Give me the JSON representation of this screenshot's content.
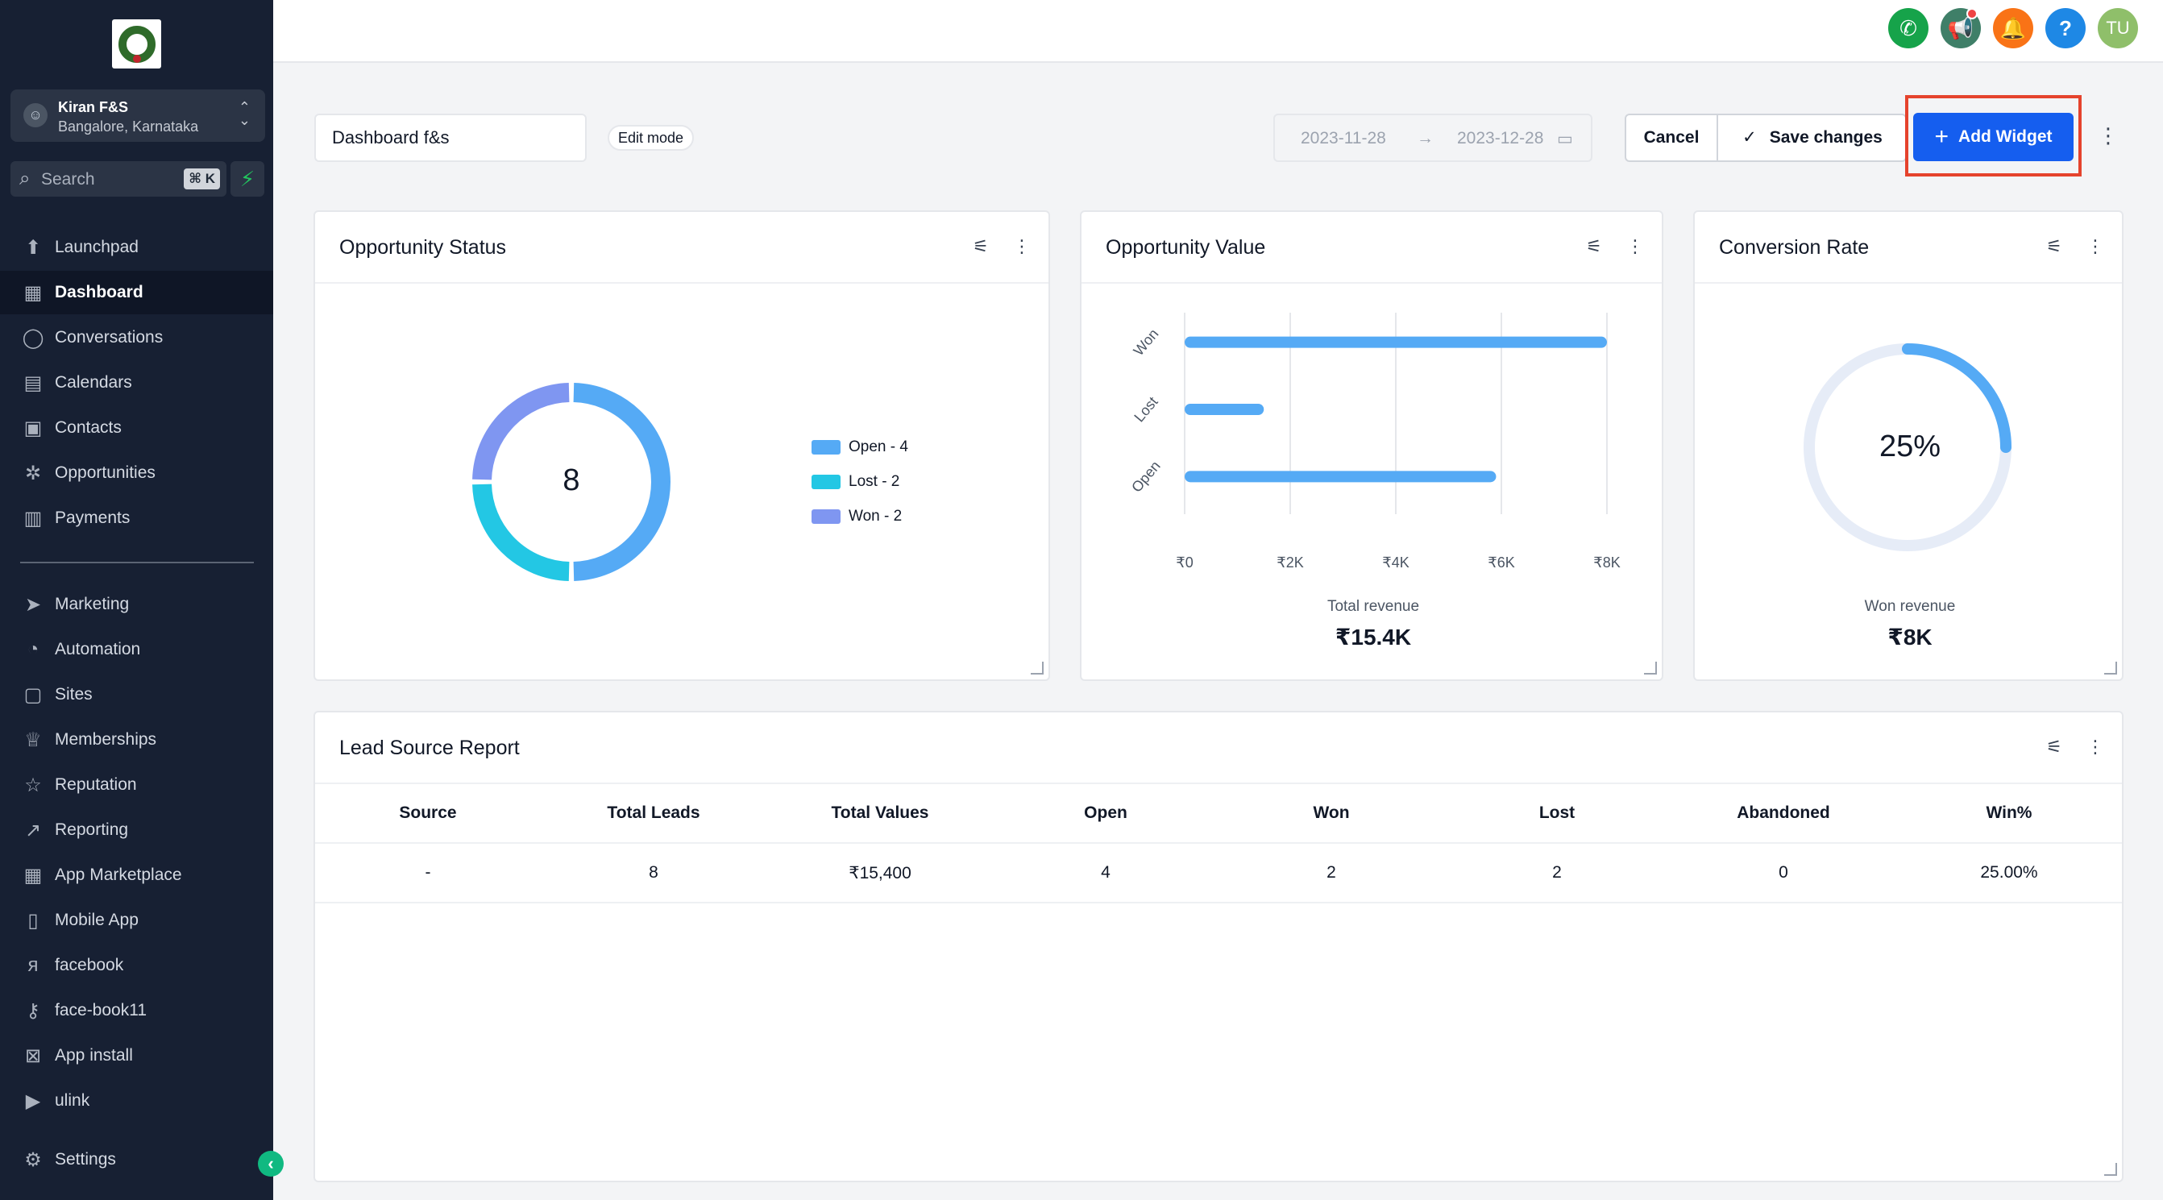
{
  "sidebar": {
    "account": {
      "name": "Kiran F&S",
      "location": "Bangalore, Karnataka"
    },
    "search": {
      "placeholder": "Search",
      "shortcut": "⌘ K"
    },
    "items": [
      {
        "label": "Launchpad",
        "icon": "launchpad-icon"
      },
      {
        "label": "Dashboard",
        "icon": "dashboard-icon",
        "active": true
      },
      {
        "label": "Conversations",
        "icon": "chat-icon"
      },
      {
        "label": "Calendars",
        "icon": "calendar-icon"
      },
      {
        "label": "Contacts",
        "icon": "contacts-icon"
      },
      {
        "label": "Opportunities",
        "icon": "opportunities-icon"
      },
      {
        "label": "Payments",
        "icon": "payments-icon"
      },
      {
        "label": "Marketing",
        "icon": "send-icon"
      },
      {
        "label": "Automation",
        "icon": "automation-icon"
      },
      {
        "label": "Sites",
        "icon": "sites-icon"
      },
      {
        "label": "Memberships",
        "icon": "memberships-icon"
      },
      {
        "label": "Reputation",
        "icon": "star-icon"
      },
      {
        "label": "Reporting",
        "icon": "reporting-icon"
      },
      {
        "label": "App Marketplace",
        "icon": "grid-icon"
      },
      {
        "label": "Mobile App",
        "icon": "mobile-icon"
      },
      {
        "label": "facebook",
        "icon": "facebook-icon"
      },
      {
        "label": "face-book11",
        "icon": "key-icon"
      },
      {
        "label": "App install",
        "icon": "app-install-icon"
      },
      {
        "label": "ulink",
        "icon": "ulink-icon"
      }
    ],
    "settings_label": "Settings"
  },
  "topbar": {
    "avatar_initials": "TU",
    "colors": {
      "phone": "#16a34a",
      "announce": "#3f7f68",
      "bell": "#f97316",
      "help": "#1e88e5",
      "avatar": "#8fbf6a"
    }
  },
  "toolbar": {
    "dashboard_name": "Dashboard f&s",
    "edit_mode_label": "Edit mode",
    "date_start": "2023-11-28",
    "date_end": "2023-12-28",
    "cancel_label": "Cancel",
    "save_label": "Save changes",
    "add_widget_label": "Add Widget"
  },
  "widgets": {
    "opportunity_status": {
      "title": "Opportunity Status",
      "total": "8",
      "legend": [
        "Open - 4",
        "Lost - 2",
        "Won - 2"
      ]
    },
    "opportunity_value": {
      "title": "Opportunity Value",
      "total_label": "Total revenue",
      "total_value": "₹15.4K"
    },
    "conversion_rate": {
      "title": "Conversion Rate",
      "percent_label": "25%",
      "won_label": "Won revenue",
      "won_value": "₹8K"
    },
    "lead_source": {
      "title": "Lead Source Report",
      "headers": [
        "Source",
        "Total Leads",
        "Total Values",
        "Open",
        "Won",
        "Lost",
        "Abandoned",
        "Win%"
      ],
      "rows": [
        [
          "-",
          "8",
          "₹15,400",
          "4",
          "2",
          "2",
          "0",
          "25.00%"
        ]
      ]
    }
  },
  "chart_data": [
    {
      "type": "pie",
      "categories": [
        "Open",
        "Lost",
        "Won"
      ],
      "values": [
        4,
        2,
        2
      ],
      "colors": [
        "#55aaf5",
        "#23c7e4",
        "#7f96f1"
      ],
      "legend": "right"
    },
    {
      "type": "bar",
      "orientation": "horizontal",
      "categories": [
        "Won",
        "Lost",
        "Open"
      ],
      "values": [
        8000,
        1500,
        5900
      ],
      "xlim": [
        0,
        8000
      ],
      "xticks": [
        "₹0",
        "₹2K",
        "₹4K",
        "₹6K",
        "₹8K"
      ],
      "color": "#55aaf5",
      "grid": true
    },
    {
      "type": "pie",
      "categories": [
        "Conversion",
        "Remaining"
      ],
      "values": [
        25,
        75
      ],
      "colors": [
        "#55aaf5",
        "#e6ecf7"
      ]
    }
  ]
}
